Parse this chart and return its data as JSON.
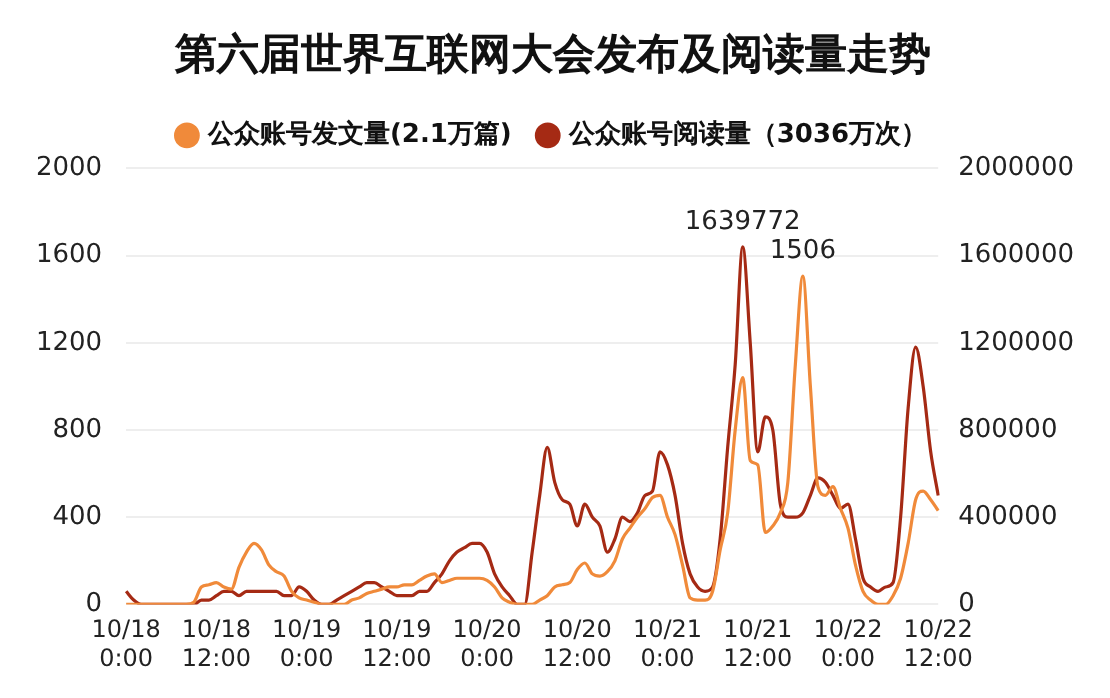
{
  "chart_data": {
    "type": "line",
    "title": "第六届世界互联网大会发布及阅读量走势",
    "categories": [
      "10/18 0:00",
      null,
      null,
      null,
      null,
      null,
      null,
      null,
      null,
      null,
      null,
      null,
      "10/18 12:00",
      null,
      null,
      null,
      null,
      null,
      null,
      null,
      null,
      null,
      null,
      null,
      "10/19 0:00",
      null,
      null,
      null,
      null,
      null,
      null,
      null,
      null,
      null,
      null,
      null,
      "10/19 12:00",
      null,
      null,
      null,
      null,
      null,
      null,
      null,
      null,
      null,
      null,
      null,
      "10/20 0:00",
      null,
      null,
      null,
      null,
      null,
      null,
      null,
      null,
      null,
      null,
      null,
      "10/20 12:00",
      null,
      null,
      null,
      null,
      null,
      null,
      null,
      null,
      null,
      null,
      null,
      "10/21 0:00",
      null,
      null,
      null,
      null,
      null,
      null,
      null,
      null,
      null,
      null,
      null,
      "10/21 12:00",
      null,
      null,
      null,
      null,
      null,
      null,
      null,
      null,
      null,
      null,
      null,
      "10/22 0:00",
      null,
      null,
      null,
      null,
      null,
      null,
      null,
      null,
      null,
      null,
      null,
      "10/22 12:00"
    ],
    "ylim": [
      0,
      2000
    ],
    "yticks": [
      0,
      400,
      800,
      1200,
      1600,
      2000
    ],
    "y2lim": [
      0,
      2000000
    ],
    "y2ticks": [
      0,
      400000,
      800000,
      1200000,
      1600000,
      2000000
    ],
    "grid": "y",
    "legend": "top",
    "line_style": "solid",
    "series": [
      {
        "name": "公众账号发文量(2.1万篇)",
        "color": "#f08a3a",
        "values": [
          0,
          0,
          0,
          0,
          0,
          0,
          0,
          0,
          0,
          10,
          80,
          90,
          100,
          80,
          70,
          170,
          240,
          280,
          250,
          180,
          150,
          130,
          60,
          30,
          20,
          10,
          0,
          0,
          0,
          0,
          20,
          30,
          50,
          60,
          70,
          80,
          80,
          90,
          90,
          110,
          130,
          140,
          100,
          110,
          120,
          120,
          120,
          120,
          110,
          80,
          30,
          10,
          0,
          0,
          0,
          20,
          40,
          80,
          90,
          100,
          160,
          190,
          140,
          130,
          150,
          200,
          300,
          350,
          400,
          440,
          490,
          500,
          400,
          320,
          180,
          30,
          20,
          20,
          60,
          250,
          420,
          800,
          1040,
          660,
          640,
          330,
          360,
          420,
          560,
          1100,
          1506,
          1000,
          540,
          500,
          540,
          440,
          350,
          180,
          60,
          20,
          0,
          0,
          40,
          120,
          280,
          480,
          520,
          480,
          430
        ],
        "value_labels": [
          null,
          null,
          null,
          null,
          null,
          null,
          null,
          null,
          null,
          null,
          null,
          null,
          null,
          null,
          null,
          null,
          null,
          null,
          null,
          null,
          null,
          null,
          null,
          null,
          null,
          null,
          null,
          null,
          null,
          null,
          null,
          null,
          null,
          null,
          null,
          null,
          null,
          null,
          null,
          null,
          null,
          null,
          null,
          null,
          null,
          null,
          null,
          null,
          null,
          null,
          null,
          null,
          null,
          null,
          null,
          null,
          null,
          null,
          null,
          null,
          null,
          null,
          null,
          null,
          null,
          null,
          null,
          null,
          null,
          null,
          null,
          null,
          null,
          null,
          null,
          null,
          null,
          null,
          null,
          null,
          null,
          null,
          null,
          null,
          null,
          null,
          null,
          null,
          null,
          null,
          "1506",
          null,
          null,
          null,
          null,
          null,
          null,
          null,
          null,
          null,
          null,
          null,
          null,
          null,
          null,
          null,
          null,
          null,
          null
        ]
      },
      {
        "name": "公众账号阅读量（3036万次）",
        "color": "#a52a14",
        "axis": "y2",
        "values": [
          60000,
          20000,
          0,
          0,
          0,
          0,
          0,
          0,
          0,
          0,
          20000,
          20000,
          40000,
          60000,
          60000,
          40000,
          60000,
          60000,
          60000,
          60000,
          60000,
          40000,
          40000,
          80000,
          60000,
          20000,
          0,
          0,
          20000,
          40000,
          60000,
          80000,
          100000,
          100000,
          80000,
          60000,
          40000,
          40000,
          40000,
          60000,
          60000,
          100000,
          140000,
          200000,
          240000,
          260000,
          280000,
          280000,
          240000,
          140000,
          80000,
          40000,
          0,
          0,
          240000,
          500000,
          720000,
          560000,
          480000,
          460000,
          360000,
          460000,
          400000,
          360000,
          240000,
          300000,
          400000,
          380000,
          420000,
          500000,
          520000,
          700000,
          640000,
          500000,
          280000,
          140000,
          80000,
          60000,
          80000,
          300000,
          720000,
          1100000,
          1639772,
          1200000,
          700000,
          860000,
          800000,
          460000,
          400000,
          400000,
          420000,
          500000,
          580000,
          560000,
          500000,
          440000,
          460000,
          300000,
          120000,
          80000,
          60000,
          80000,
          100000,
          400000,
          900000,
          1180000,
          1000000,
          700000,
          500000
        ],
        "value_labels": [
          null,
          null,
          null,
          null,
          null,
          null,
          null,
          null,
          null,
          null,
          null,
          null,
          null,
          null,
          null,
          null,
          null,
          null,
          null,
          null,
          null,
          null,
          null,
          null,
          null,
          null,
          null,
          null,
          null,
          null,
          null,
          null,
          null,
          null,
          null,
          null,
          null,
          null,
          null,
          null,
          null,
          null,
          null,
          null,
          null,
          null,
          null,
          null,
          null,
          null,
          null,
          null,
          null,
          null,
          null,
          null,
          null,
          null,
          null,
          null,
          null,
          null,
          null,
          null,
          null,
          null,
          null,
          null,
          null,
          null,
          null,
          null,
          null,
          null,
          null,
          null,
          null,
          null,
          null,
          null,
          null,
          null,
          "1639772",
          null,
          null,
          null,
          null,
          null,
          null,
          null,
          null,
          null,
          null,
          null,
          null,
          null,
          null,
          null,
          null,
          null,
          null,
          null,
          null,
          null,
          null,
          null,
          null,
          null,
          null
        ]
      }
    ]
  }
}
